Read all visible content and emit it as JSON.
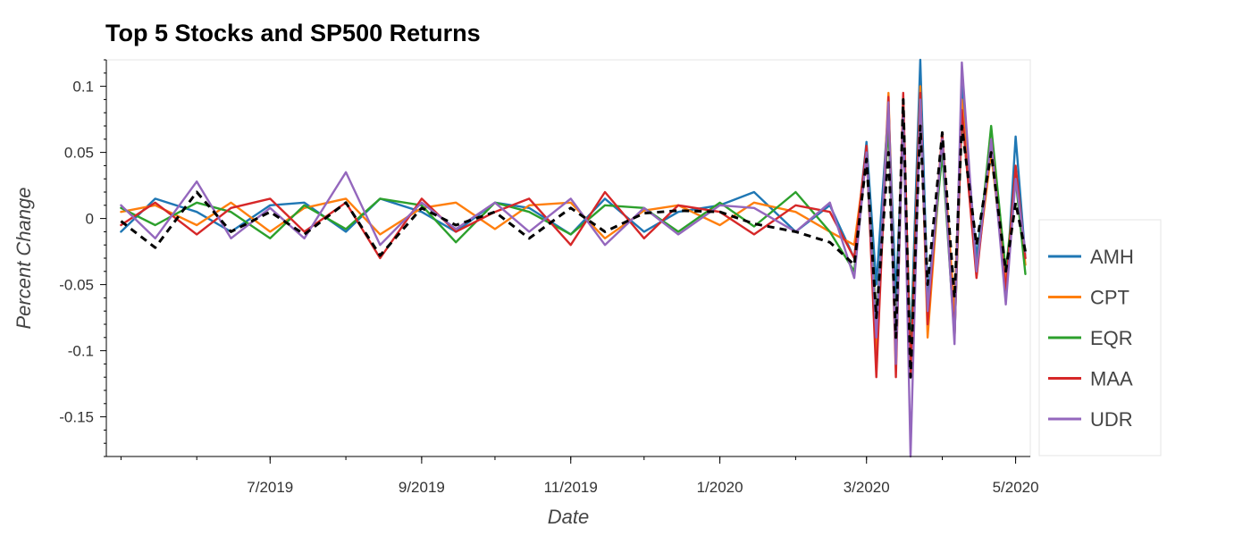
{
  "chart_data": {
    "type": "line",
    "title": "Top 5 Stocks and SP500 Returns",
    "xlabel": "Date",
    "ylabel": "Percent Change",
    "x_tick_labels": [
      "7/2019",
      "9/2019",
      "11/2019",
      "1/2020",
      "3/2020",
      "5/2020"
    ],
    "y_tick_labels": [
      "0.1",
      "0.05",
      "0",
      "-0.05",
      "-0.1",
      "-0.15"
    ],
    "y_ticks": [
      0.1,
      0.05,
      0,
      -0.05,
      -0.1,
      -0.15
    ],
    "ylim": [
      -0.18,
      0.12
    ],
    "grid": false,
    "legend_position": "right",
    "x": [
      "2019-05-01",
      "2019-05-15",
      "2019-06-01",
      "2019-06-15",
      "2019-07-01",
      "2019-07-15",
      "2019-08-01",
      "2019-08-15",
      "2019-09-01",
      "2019-09-15",
      "2019-10-01",
      "2019-10-15",
      "2019-11-01",
      "2019-11-15",
      "2019-12-01",
      "2019-12-15",
      "2020-01-01",
      "2020-01-15",
      "2020-02-01",
      "2020-02-15",
      "2020-02-25",
      "2020-03-01",
      "2020-03-05",
      "2020-03-10",
      "2020-03-13",
      "2020-03-16",
      "2020-03-19",
      "2020-03-23",
      "2020-03-26",
      "2020-04-01",
      "2020-04-06",
      "2020-04-09",
      "2020-04-15",
      "2020-04-21",
      "2020-04-27",
      "2020-05-01",
      "2020-05-05"
    ],
    "series": [
      {
        "name": "AMH",
        "color": "#1f77b4",
        "dashed": false,
        "values": [
          -0.01,
          0.015,
          0.005,
          -0.01,
          0.01,
          0.012,
          -0.01,
          0.015,
          0.005,
          -0.01,
          0.012,
          0.008,
          -0.012,
          0.015,
          -0.01,
          0.005,
          0.01,
          0.02,
          -0.01,
          0.01,
          -0.03,
          0.058,
          -0.05,
          0.085,
          -0.06,
          0.07,
          -0.1,
          0.12,
          -0.06,
          0.05,
          -0.08,
          0.1,
          -0.03,
          0.06,
          -0.06,
          0.062,
          -0.03
        ]
      },
      {
        "name": "CPT",
        "color": "#ff7f0e",
        "dashed": false,
        "values": [
          0.005,
          0.01,
          -0.005,
          0.012,
          -0.01,
          0.008,
          0.015,
          -0.012,
          0.008,
          0.012,
          -0.008,
          0.01,
          0.012,
          -0.015,
          0.006,
          0.01,
          -0.005,
          0.012,
          0.005,
          -0.01,
          -0.02,
          0.05,
          -0.1,
          0.095,
          -0.11,
          0.08,
          -0.12,
          0.1,
          -0.09,
          0.06,
          -0.07,
          0.09,
          -0.04,
          0.05,
          -0.05,
          0.035,
          -0.035
        ]
      },
      {
        "name": "EQR",
        "color": "#2ca02c",
        "dashed": false,
        "values": [
          0.008,
          -0.005,
          0.012,
          0.005,
          -0.015,
          0.01,
          -0.008,
          0.015,
          0.01,
          -0.018,
          0.012,
          0.005,
          -0.012,
          0.01,
          0.008,
          -0.01,
          0.012,
          -0.006,
          0.02,
          -0.01,
          -0.04,
          0.05,
          -0.08,
          0.072,
          -0.1,
          0.085,
          -0.11,
          0.09,
          -0.07,
          0.05,
          -0.09,
          0.08,
          -0.04,
          0.07,
          -0.04,
          0.03,
          -0.042
        ]
      },
      {
        "name": "MAA",
        "color": "#d62728",
        "dashed": false,
        "values": [
          -0.005,
          0.012,
          -0.012,
          0.008,
          0.015,
          -0.01,
          0.012,
          -0.03,
          0.015,
          -0.01,
          0.005,
          0.015,
          -0.02,
          0.02,
          -0.015,
          0.01,
          0.005,
          -0.012,
          0.01,
          0.005,
          -0.03,
          0.055,
          -0.12,
          0.092,
          -0.12,
          0.095,
          -0.12,
          0.095,
          -0.08,
          0.065,
          -0.09,
          0.082,
          -0.045,
          0.06,
          -0.055,
          0.04,
          -0.03
        ]
      },
      {
        "name": "UDR",
        "color": "#9467bd",
        "dashed": false,
        "values": [
          0.01,
          -0.015,
          0.028,
          -0.015,
          0.008,
          -0.015,
          0.035,
          -0.02,
          0.012,
          -0.008,
          0.012,
          -0.01,
          0.015,
          -0.02,
          0.008,
          -0.012,
          0.01,
          0.008,
          -0.01,
          0.012,
          -0.045,
          0.05,
          -0.09,
          0.088,
          -0.11,
          0.08,
          -0.18,
          0.09,
          -0.07,
          0.06,
          -0.095,
          0.118,
          -0.04,
          0.06,
          -0.065,
          0.03,
          -0.025
        ]
      },
      {
        "name": "SP500",
        "color": "#000000",
        "dashed": true,
        "values": [
          -0.002,
          -0.022,
          0.02,
          -0.01,
          0.005,
          -0.012,
          0.012,
          -0.028,
          0.008,
          -0.005,
          0.005,
          -0.015,
          0.008,
          -0.01,
          0.004,
          0.006,
          0.005,
          -0.004,
          -0.01,
          -0.018,
          -0.035,
          0.045,
          -0.075,
          0.05,
          -0.09,
          0.09,
          -0.12,
          0.07,
          -0.05,
          0.065,
          -0.06,
          0.07,
          -0.02,
          0.05,
          -0.04,
          0.012,
          -0.025
        ]
      }
    ]
  }
}
